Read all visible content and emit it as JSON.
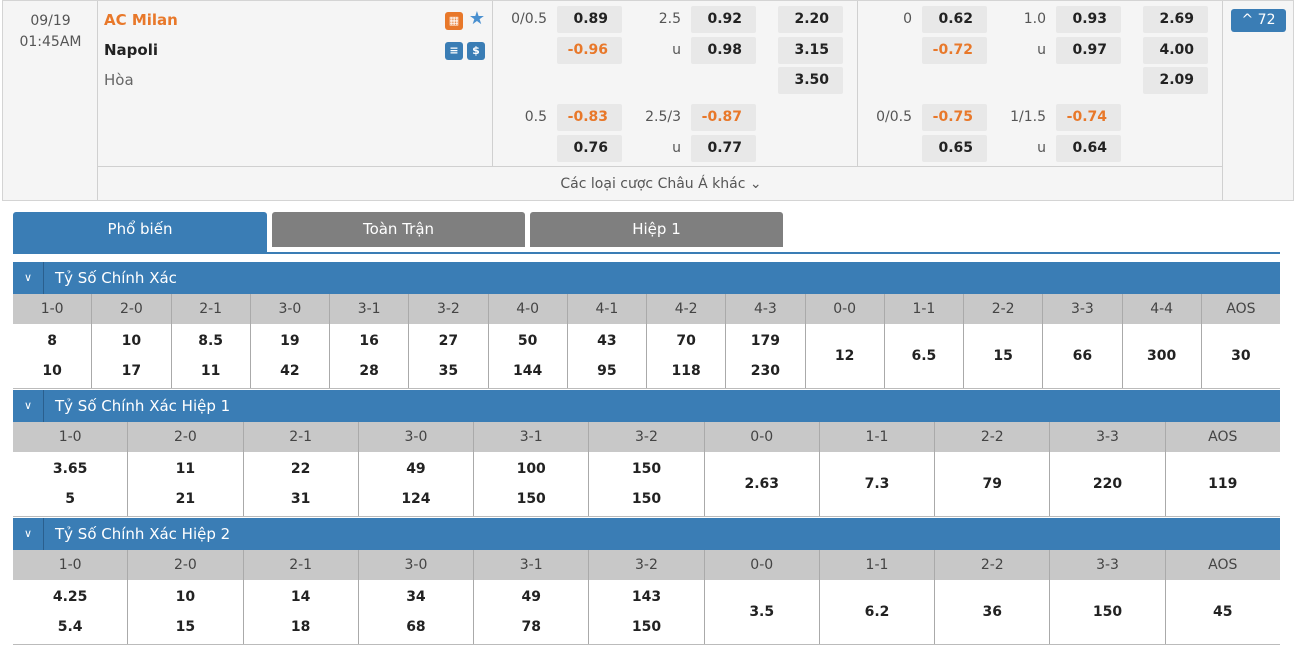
{
  "match": {
    "date": "09/19",
    "time": "01:45AM",
    "home": "AC Milan",
    "away": "Napoli",
    "draw": "Hòa",
    "count": "^ 72",
    "more": "Các loại cược Châu Á khác ⌄"
  },
  "colors": {
    "accent": "#3a7db5",
    "orange": "#e8782a",
    "tab_inactive": "#7f7f7f"
  },
  "icons": [
    "field-icon",
    "star-icon",
    "scoreboard-icon",
    "dollar-icon"
  ],
  "odds": {
    "ft": {
      "hdp1": "0/0.5",
      "h1": "0.89",
      "a1": "-0.96",
      "ou1": "2.5",
      "o1": "0.92",
      "u1": "0.98",
      "ulab": "u",
      "x1": "2.20",
      "x2": "3.15",
      "x3": "3.50",
      "hdp2": "0.5",
      "h2": "-0.83",
      "a2": "0.76",
      "ou2": "2.5/3",
      "o2": "-0.87",
      "u2": "0.77"
    },
    "h1": {
      "hdp1": "0",
      "h1": "0.62",
      "a1": "-0.72",
      "ou1": "1.0",
      "o1": "0.93",
      "u1": "0.97",
      "ulab": "u",
      "x1": "2.69",
      "x2": "4.00",
      "x3": "2.09",
      "hdp2": "0/0.5",
      "h2": "-0.75",
      "a2": "0.65",
      "ou2": "1/1.5",
      "o2": "-0.74",
      "u2": "0.64"
    }
  },
  "tabs": [
    "Phổ biến",
    "Toàn Trận",
    "Hiệp 1"
  ],
  "sections": [
    {
      "title": "Tỷ Số Chính Xác",
      "cols": [
        [
          "1-0",
          "8",
          "10"
        ],
        [
          "2-0",
          "10",
          "17"
        ],
        [
          "2-1",
          "8.5",
          "11"
        ],
        [
          "3-0",
          "19",
          "42"
        ],
        [
          "3-1",
          "16",
          "28"
        ],
        [
          "3-2",
          "27",
          "35"
        ],
        [
          "4-0",
          "50",
          "144"
        ],
        [
          "4-1",
          "43",
          "95"
        ],
        [
          "4-2",
          "70",
          "118"
        ],
        [
          "4-3",
          "179",
          "230"
        ],
        [
          "0-0",
          "12"
        ],
        [
          "1-1",
          "6.5"
        ],
        [
          "2-2",
          "15"
        ],
        [
          "3-3",
          "66"
        ],
        [
          "4-4",
          "300"
        ],
        [
          "AOS",
          "30"
        ]
      ]
    },
    {
      "title": "Tỷ Số Chính Xác Hiệp 1",
      "cols": [
        [
          "1-0",
          "3.65",
          "5"
        ],
        [
          "2-0",
          "11",
          "21"
        ],
        [
          "2-1",
          "22",
          "31"
        ],
        [
          "3-0",
          "49",
          "124"
        ],
        [
          "3-1",
          "100",
          "150"
        ],
        [
          "3-2",
          "150",
          "150"
        ],
        [
          "0-0",
          "2.63"
        ],
        [
          "1-1",
          "7.3"
        ],
        [
          "2-2",
          "79"
        ],
        [
          "3-3",
          "220"
        ],
        [
          "AOS",
          "119"
        ]
      ]
    },
    {
      "title": "Tỷ Số Chính Xác Hiệp 2",
      "cols": [
        [
          "1-0",
          "4.25",
          "5.4"
        ],
        [
          "2-0",
          "10",
          "15"
        ],
        [
          "2-1",
          "14",
          "18"
        ],
        [
          "3-0",
          "34",
          "68"
        ],
        [
          "3-1",
          "49",
          "78"
        ],
        [
          "3-2",
          "143",
          "150"
        ],
        [
          "0-0",
          "3.5"
        ],
        [
          "1-1",
          "6.2"
        ],
        [
          "2-2",
          "36"
        ],
        [
          "3-3",
          "150"
        ],
        [
          "AOS",
          "45"
        ]
      ]
    }
  ]
}
